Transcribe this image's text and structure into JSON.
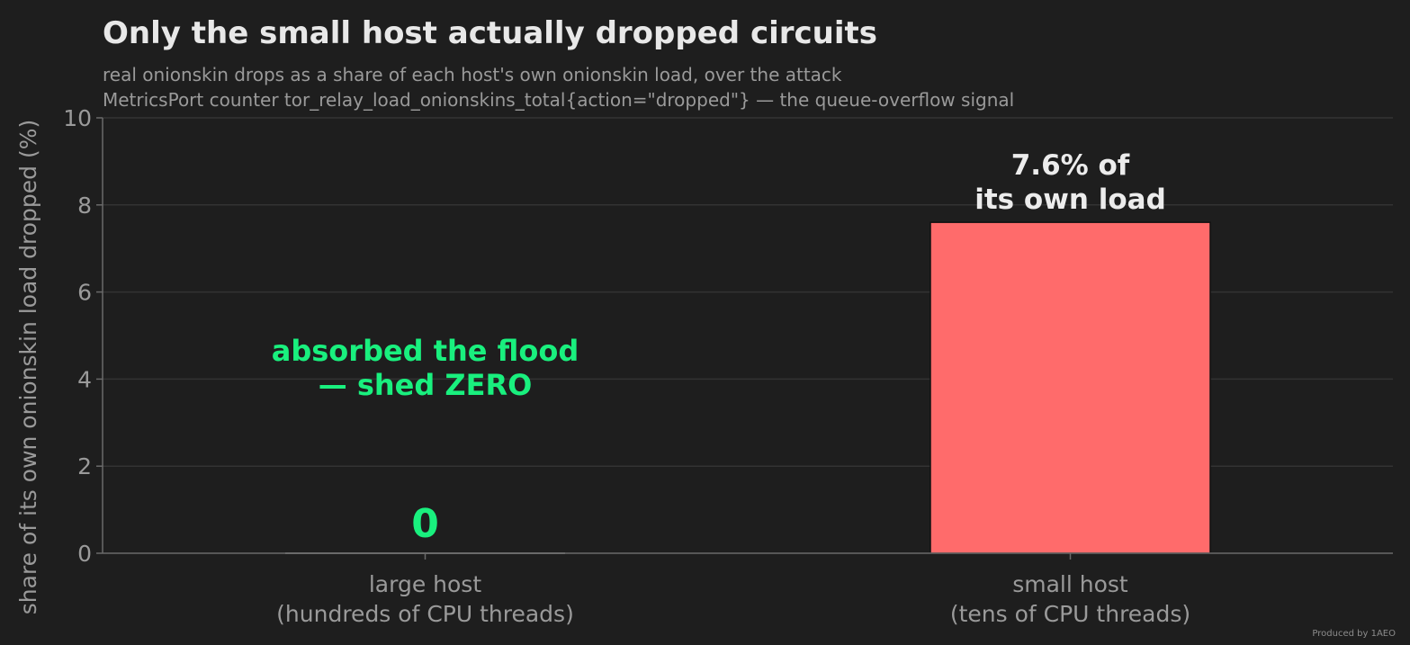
{
  "chart_data": {
    "type": "bar",
    "title": "Only the small host actually dropped circuits",
    "subtitle_lines": [
      "real onionskin drops as a share of each host's own onionskin load, over the attack",
      "MetricsPort counter tor_relay_load_onionskins_total{action=\"dropped\"} — the queue-overflow signal"
    ],
    "xlabel": "",
    "ylabel": "share of its own onionskin load dropped  (%)",
    "ylim": [
      0,
      10
    ],
    "yticks": [
      "0",
      "2",
      "4",
      "6",
      "8",
      "10"
    ],
    "grid": true,
    "categories": [
      [
        "large host",
        "(hundreds of CPU threads)"
      ],
      [
        "small host",
        "(tens of CPU threads)"
      ]
    ],
    "values": [
      0,
      7.6
    ],
    "bar_colors": [
      "#6b6b6b",
      "#ff6b6b"
    ],
    "value_labels": [
      {
        "lines": [
          "0"
        ],
        "color": "#19f07e"
      },
      {
        "lines": [
          "7.6% of",
          "its own load"
        ],
        "color": "#ececec"
      }
    ],
    "annotations": [
      {
        "lines": [
          "absorbed the flood",
          "— shed ZERO"
        ],
        "color": "#19f07e"
      }
    ]
  },
  "footer": {
    "credit": "Produced by 1AEO"
  },
  "colors": {
    "background": "#1e1e1e",
    "grid": "#333333",
    "axis": "#6a6a6a",
    "muted_text": "#9a9a9a",
    "accent_green": "#19f07e",
    "accent_red": "#ff6b6b"
  }
}
